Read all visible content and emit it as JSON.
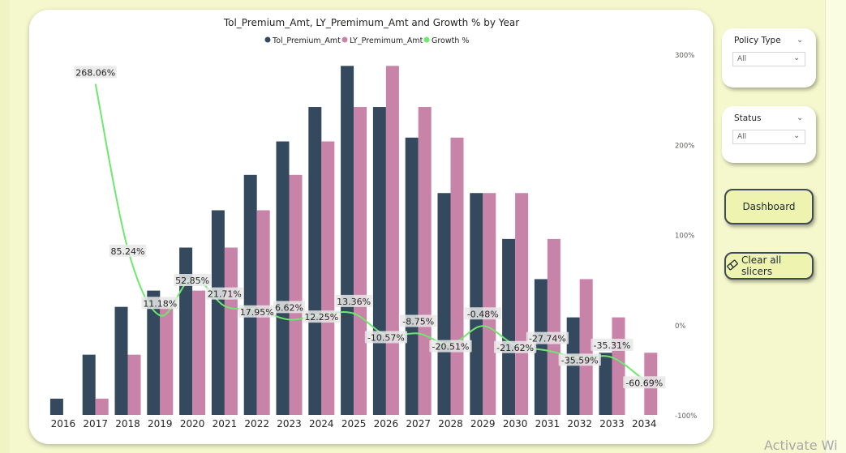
{
  "chart_data": {
    "type": "bar+line",
    "title": "Tol_Premium_Amt, LY_Premimum_Amt and Growth % by Year",
    "categories": [
      "2016",
      "2017",
      "2018",
      "2019",
      "2020",
      "2021",
      "2022",
      "2023",
      "2024",
      "2025",
      "2026",
      "2027",
      "2028",
      "2029",
      "2030",
      "2031",
      "2032",
      "2033",
      "2034"
    ],
    "series": [
      {
        "name": "Tol_Premium_Amt",
        "kind": "bar",
        "color": "#34495e",
        "values": [
          17,
          63,
          113,
          130,
          175,
          214,
          251,
          286,
          322,
          365,
          322,
          290,
          232,
          232,
          184,
          142,
          102,
          65,
          null
        ]
      },
      {
        "name": "LY_Premimum_Amt",
        "kind": "bar",
        "color": "#c783a8",
        "values": [
          null,
          17,
          63,
          113,
          130,
          175,
          214,
          251,
          286,
          322,
          365,
          322,
          290,
          232,
          232,
          184,
          142,
          102,
          65
        ]
      },
      {
        "name": "Growth %",
        "kind": "line",
        "axis": "right",
        "color": "#6ee86e",
        "values": [
          null,
          268.06,
          85.24,
          11.18,
          52.85,
          21.71,
          17.95,
          6.62,
          12.25,
          13.36,
          -10.57,
          -8.75,
          -20.51,
          -0.48,
          -21.62,
          -27.74,
          -35.59,
          -35.31,
          -60.69
        ],
        "labels": [
          "",
          "268.06%",
          "85.24%",
          "11.18%",
          "52.85%",
          "21.71%",
          "17.95%",
          "6.62%",
          "12.25%",
          "13.36%",
          "-10.57%",
          "-8.75%",
          "-20.51%",
          "-0.48%",
          "-21.62%",
          "-27.74%",
          "-35.59%",
          "-35.31%",
          "-60.69%"
        ]
      }
    ],
    "bar_ylim": [
      0,
      400
    ],
    "growth_axis": {
      "range": [
        -100,
        300
      ],
      "ticks": [
        "300%",
        "200%",
        "100%",
        "0%",
        "-100%"
      ],
      "tick_values": [
        300,
        200,
        100,
        0,
        -100
      ],
      "position": "right"
    },
    "legend": {
      "position": "top-center"
    },
    "grid": false
  },
  "slicers": [
    {
      "title": "Policy Type",
      "value": "All"
    },
    {
      "title": "Status",
      "value": "All"
    }
  ],
  "buttons": {
    "dashboard": "Dashboard",
    "clear_slicers": "Clear all slicers"
  },
  "watermark": "Activate Wi",
  "icons": {
    "eraser": "eraser-icon",
    "chevron": "chevron-down-icon"
  },
  "colors": {
    "page_bg": "#f5f8cc",
    "button_bg": "#eef3b0",
    "button_border": "#3e4a55"
  }
}
